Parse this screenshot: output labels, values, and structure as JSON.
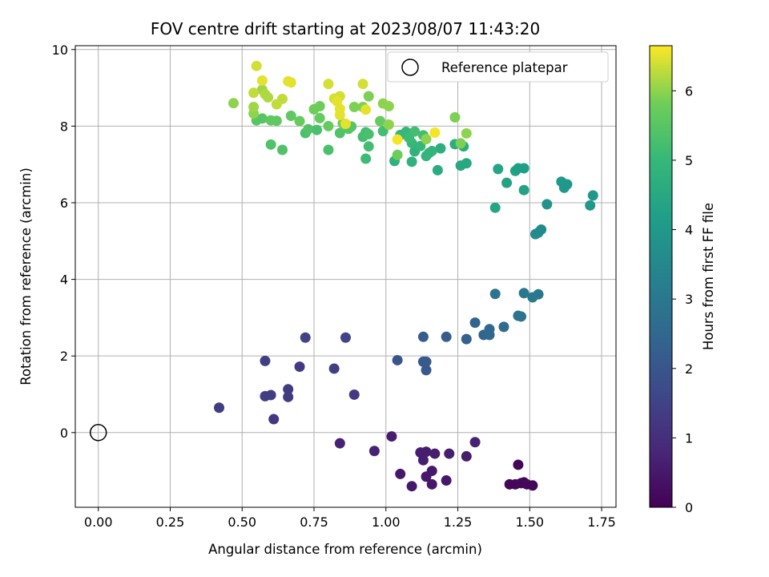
{
  "chart_data": {
    "type": "scatter",
    "title": "FOV centre drift starting at 2023/08/07 11:43:20",
    "xlabel": "Angular distance from reference (arcmin)",
    "ylabel": "Rotation from reference (arcmin)",
    "xlim": [
      -0.08,
      1.8
    ],
    "ylim": [
      -1.95,
      10.1
    ],
    "xticks": [
      "0.00",
      "0.25",
      "0.50",
      "0.75",
      "1.00",
      "1.25",
      "1.50",
      "1.75"
    ],
    "yticks": [
      "0",
      "2",
      "4",
      "6",
      "8",
      "10"
    ],
    "grid": true,
    "legend": {
      "position": "top-right",
      "entries": [
        "Reference platepar"
      ]
    },
    "reference_point": {
      "x": 0,
      "y": 0
    },
    "colorbar": {
      "label": "Hours from first FF file",
      "range": [
        0,
        6.65
      ],
      "ticks": [
        "0",
        "1",
        "2",
        "3",
        "4",
        "5",
        "6"
      ],
      "colormap": "viridis"
    },
    "points": [
      {
        "x": 1.46,
        "y": -0.84,
        "c": 0.1
      },
      {
        "x": 1.43,
        "y": -1.35,
        "c": 0.1
      },
      {
        "x": 1.45,
        "y": -1.35,
        "c": 0.1
      },
      {
        "x": 1.47,
        "y": -1.32,
        "c": 0.15
      },
      {
        "x": 1.48,
        "y": -1.3,
        "c": 0.1
      },
      {
        "x": 1.49,
        "y": -1.35,
        "c": 0.15
      },
      {
        "x": 1.51,
        "y": -1.38,
        "c": 0.1
      },
      {
        "x": 1.02,
        "y": -0.1,
        "c": 0.6
      },
      {
        "x": 1.12,
        "y": -0.52,
        "c": 0.6
      },
      {
        "x": 1.14,
        "y": -0.5,
        "c": 0.6
      },
      {
        "x": 1.17,
        "y": -0.55,
        "c": 0.6
      },
      {
        "x": 1.22,
        "y": -0.55,
        "c": 0.6
      },
      {
        "x": 1.31,
        "y": -0.25,
        "c": 0.7
      },
      {
        "x": 1.28,
        "y": -0.62,
        "c": 0.6
      },
      {
        "x": 1.13,
        "y": -0.72,
        "c": 0.6
      },
      {
        "x": 1.16,
        "y": -1.0,
        "c": 0.5
      },
      {
        "x": 1.14,
        "y": -1.15,
        "c": 0.5
      },
      {
        "x": 1.16,
        "y": -1.35,
        "c": 0.5
      },
      {
        "x": 1.21,
        "y": -1.25,
        "c": 0.5
      },
      {
        "x": 1.09,
        "y": -1.4,
        "c": 0.5
      },
      {
        "x": 1.05,
        "y": -1.08,
        "c": 0.5
      },
      {
        "x": 0.96,
        "y": -0.48,
        "c": 0.7
      },
      {
        "x": 0.84,
        "y": -0.28,
        "c": 0.7
      },
      {
        "x": 0.42,
        "y": 0.65,
        "c": 1.35
      },
      {
        "x": 0.61,
        "y": 0.35,
        "c": 1.2
      },
      {
        "x": 0.58,
        "y": 0.95,
        "c": 1.35
      },
      {
        "x": 0.6,
        "y": 0.98,
        "c": 1.35
      },
      {
        "x": 0.66,
        "y": 0.93,
        "c": 1.3
      },
      {
        "x": 0.66,
        "y": 1.13,
        "c": 1.3
      },
      {
        "x": 0.7,
        "y": 1.72,
        "c": 1.3
      },
      {
        "x": 0.58,
        "y": 1.87,
        "c": 1.4
      },
      {
        "x": 0.89,
        "y": 0.99,
        "c": 1.3
      },
      {
        "x": 0.82,
        "y": 1.67,
        "c": 1.4
      },
      {
        "x": 0.72,
        "y": 2.48,
        "c": 1.5
      },
      {
        "x": 0.86,
        "y": 2.48,
        "c": 1.5
      },
      {
        "x": 1.04,
        "y": 1.89,
        "c": 2.0
      },
      {
        "x": 1.13,
        "y": 1.85,
        "c": 2.1
      },
      {
        "x": 1.14,
        "y": 1.85,
        "c": 2.1
      },
      {
        "x": 1.14,
        "y": 1.63,
        "c": 2.1
      },
      {
        "x": 1.13,
        "y": 2.5,
        "c": 2.2
      },
      {
        "x": 1.21,
        "y": 2.5,
        "c": 2.2
      },
      {
        "x": 1.28,
        "y": 2.44,
        "c": 2.3
      },
      {
        "x": 1.31,
        "y": 2.87,
        "c": 2.4
      },
      {
        "x": 1.34,
        "y": 2.55,
        "c": 2.4
      },
      {
        "x": 1.36,
        "y": 2.55,
        "c": 2.5
      },
      {
        "x": 1.36,
        "y": 2.7,
        "c": 2.5
      },
      {
        "x": 1.41,
        "y": 2.76,
        "c": 2.6
      },
      {
        "x": 1.38,
        "y": 3.62,
        "c": 2.8
      },
      {
        "x": 1.46,
        "y": 3.05,
        "c": 2.8
      },
      {
        "x": 1.47,
        "y": 3.03,
        "c": 2.8
      },
      {
        "x": 1.48,
        "y": 3.64,
        "c": 3.0
      },
      {
        "x": 1.51,
        "y": 3.53,
        "c": 3.0
      },
      {
        "x": 1.53,
        "y": 3.61,
        "c": 3.0
      },
      {
        "x": 1.52,
        "y": 5.18,
        "c": 3.6
      },
      {
        "x": 1.53,
        "y": 5.22,
        "c": 3.6
      },
      {
        "x": 1.54,
        "y": 5.3,
        "c": 3.6
      },
      {
        "x": 1.56,
        "y": 5.96,
        "c": 3.8
      },
      {
        "x": 1.61,
        "y": 6.55,
        "c": 4.0
      },
      {
        "x": 1.62,
        "y": 6.39,
        "c": 4.0
      },
      {
        "x": 1.63,
        "y": 6.48,
        "c": 4.0
      },
      {
        "x": 1.71,
        "y": 5.93,
        "c": 4.0
      },
      {
        "x": 1.72,
        "y": 6.19,
        "c": 4.0
      },
      {
        "x": 1.38,
        "y": 5.87,
        "c": 4.4
      },
      {
        "x": 1.39,
        "y": 6.88,
        "c": 4.4
      },
      {
        "x": 1.42,
        "y": 6.52,
        "c": 4.3
      },
      {
        "x": 1.45,
        "y": 6.83,
        "c": 4.3
      },
      {
        "x": 1.46,
        "y": 6.9,
        "c": 4.2
      },
      {
        "x": 1.48,
        "y": 6.9,
        "c": 4.2
      },
      {
        "x": 1.48,
        "y": 6.33,
        "c": 4.3
      },
      {
        "x": 1.26,
        "y": 6.97,
        "c": 4.5
      },
      {
        "x": 1.28,
        "y": 7.03,
        "c": 4.5
      },
      {
        "x": 1.27,
        "y": 7.47,
        "c": 4.6
      },
      {
        "x": 1.24,
        "y": 7.53,
        "c": 4.7
      },
      {
        "x": 1.18,
        "y": 6.85,
        "c": 4.6
      },
      {
        "x": 1.19,
        "y": 7.42,
        "c": 4.7
      },
      {
        "x": 1.03,
        "y": 7.09,
        "c": 4.8
      },
      {
        "x": 1.09,
        "y": 7.07,
        "c": 4.8
      },
      {
        "x": 1.1,
        "y": 7.34,
        "c": 4.8
      },
      {
        "x": 1.14,
        "y": 7.22,
        "c": 4.9
      },
      {
        "x": 1.15,
        "y": 7.3,
        "c": 4.9
      },
      {
        "x": 1.16,
        "y": 7.35,
        "c": 4.9
      },
      {
        "x": 1.12,
        "y": 7.48,
        "c": 5.0
      },
      {
        "x": 1.09,
        "y": 7.56,
        "c": 5.0
      },
      {
        "x": 1.05,
        "y": 7.77,
        "c": 5.0
      },
      {
        "x": 1.07,
        "y": 7.85,
        "c": 5.0
      },
      {
        "x": 1.08,
        "y": 7.7,
        "c": 5.1
      },
      {
        "x": 1.1,
        "y": 7.86,
        "c": 5.2
      },
      {
        "x": 1.13,
        "y": 7.76,
        "c": 5.2
      },
      {
        "x": 0.99,
        "y": 7.87,
        "c": 5.2
      },
      {
        "x": 0.93,
        "y": 7.15,
        "c": 5.1
      },
      {
        "x": 0.94,
        "y": 7.47,
        "c": 5.2
      },
      {
        "x": 0.92,
        "y": 7.72,
        "c": 5.2
      },
      {
        "x": 0.93,
        "y": 7.84,
        "c": 5.2
      },
      {
        "x": 0.94,
        "y": 7.79,
        "c": 5.3
      },
      {
        "x": 0.8,
        "y": 7.38,
        "c": 5.3
      },
      {
        "x": 0.76,
        "y": 7.9,
        "c": 5.3
      },
      {
        "x": 0.72,
        "y": 7.82,
        "c": 5.3
      },
      {
        "x": 0.73,
        "y": 7.92,
        "c": 5.4
      },
      {
        "x": 0.84,
        "y": 7.82,
        "c": 5.4
      },
      {
        "x": 0.87,
        "y": 7.93,
        "c": 5.5
      },
      {
        "x": 0.88,
        "y": 7.99,
        "c": 5.5
      },
      {
        "x": 0.6,
        "y": 7.52,
        "c": 5.4
      },
      {
        "x": 0.64,
        "y": 7.38,
        "c": 5.4
      },
      {
        "x": 0.55,
        "y": 8.15,
        "c": 5.5
      },
      {
        "x": 0.57,
        "y": 8.2,
        "c": 5.5
      },
      {
        "x": 0.6,
        "y": 8.15,
        "c": 5.6
      },
      {
        "x": 0.62,
        "y": 8.14,
        "c": 5.6
      },
      {
        "x": 0.67,
        "y": 8.27,
        "c": 5.6
      },
      {
        "x": 0.7,
        "y": 8.13,
        "c": 5.7
      },
      {
        "x": 0.77,
        "y": 8.21,
        "c": 5.7
      },
      {
        "x": 0.8,
        "y": 8.0,
        "c": 5.7
      },
      {
        "x": 0.85,
        "y": 8.07,
        "c": 5.8
      },
      {
        "x": 0.75,
        "y": 8.44,
        "c": 5.8
      },
      {
        "x": 0.77,
        "y": 8.52,
        "c": 5.8
      },
      {
        "x": 0.89,
        "y": 8.5,
        "c": 5.9
      },
      {
        "x": 0.92,
        "y": 8.5,
        "c": 5.9
      },
      {
        "x": 0.94,
        "y": 8.78,
        "c": 5.9
      },
      {
        "x": 0.98,
        "y": 8.13,
        "c": 5.7
      },
      {
        "x": 0.99,
        "y": 8.59,
        "c": 6.0
      },
      {
        "x": 1.01,
        "y": 8.04,
        "c": 6.0
      },
      {
        "x": 1.01,
        "y": 8.52,
        "c": 6.0
      },
      {
        "x": 1.04,
        "y": 7.25,
        "c": 5.8
      },
      {
        "x": 1.24,
        "y": 8.23,
        "c": 5.9
      },
      {
        "x": 1.26,
        "y": 7.55,
        "c": 5.9
      },
      {
        "x": 1.28,
        "y": 7.81,
        "c": 6.0
      },
      {
        "x": 1.14,
        "y": 7.66,
        "c": 6.0
      },
      {
        "x": 0.47,
        "y": 8.6,
        "c": 6.0
      },
      {
        "x": 0.54,
        "y": 8.33,
        "c": 6.0
      },
      {
        "x": 0.54,
        "y": 8.5,
        "c": 6.1
      },
      {
        "x": 0.57,
        "y": 8.95,
        "c": 6.1
      },
      {
        "x": 0.58,
        "y": 8.83,
        "c": 6.2
      },
      {
        "x": 0.59,
        "y": 8.75,
        "c": 6.2
      },
      {
        "x": 0.62,
        "y": 8.57,
        "c": 6.3
      },
      {
        "x": 0.64,
        "y": 8.71,
        "c": 6.3
      },
      {
        "x": 0.54,
        "y": 8.87,
        "c": 6.3
      },
      {
        "x": 0.55,
        "y": 9.57,
        "c": 6.4
      },
      {
        "x": 0.57,
        "y": 9.19,
        "c": 6.5
      },
      {
        "x": 0.66,
        "y": 9.17,
        "c": 6.5
      },
      {
        "x": 0.67,
        "y": 9.14,
        "c": 6.5
      },
      {
        "x": 0.8,
        "y": 9.1,
        "c": 6.4
      },
      {
        "x": 0.82,
        "y": 8.72,
        "c": 6.4
      },
      {
        "x": 0.84,
        "y": 8.78,
        "c": 6.4
      },
      {
        "x": 0.83,
        "y": 8.65,
        "c": 6.5
      },
      {
        "x": 0.84,
        "y": 8.45,
        "c": 6.5
      },
      {
        "x": 0.84,
        "y": 8.29,
        "c": 6.5
      },
      {
        "x": 0.86,
        "y": 8.06,
        "c": 6.5
      },
      {
        "x": 0.92,
        "y": 9.1,
        "c": 6.4
      },
      {
        "x": 0.93,
        "y": 8.43,
        "c": 6.5
      },
      {
        "x": 1.04,
        "y": 7.65,
        "c": 6.6
      },
      {
        "x": 1.17,
        "y": 7.83,
        "c": 6.6
      }
    ]
  }
}
